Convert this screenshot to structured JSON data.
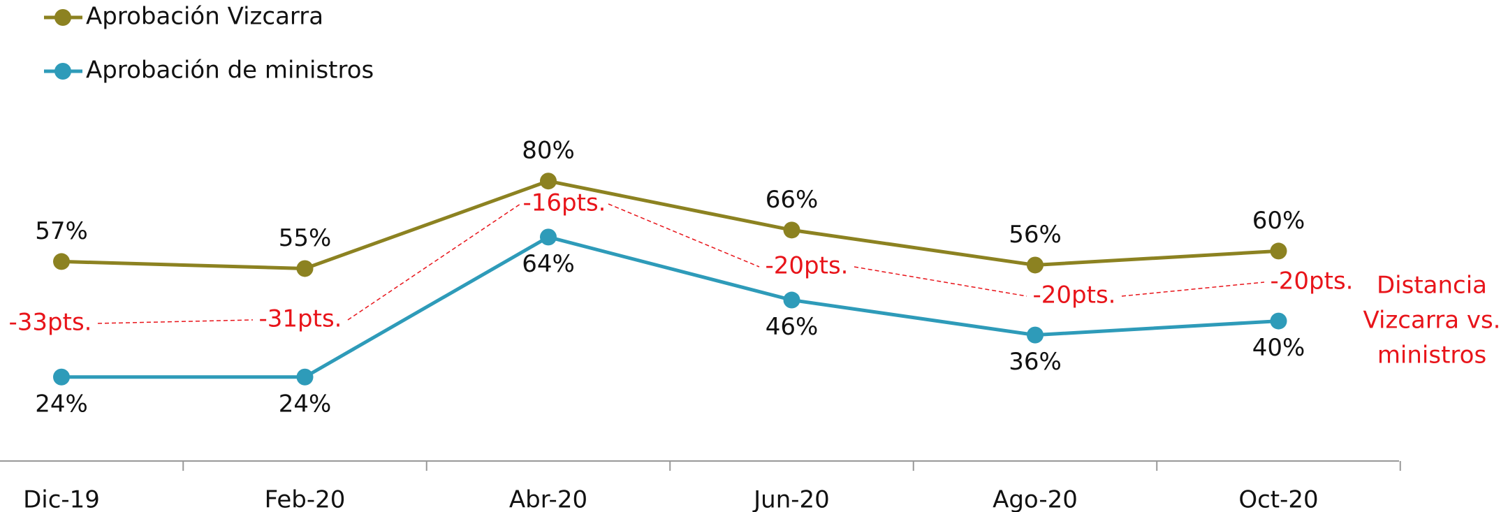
{
  "chart_data": {
    "type": "line",
    "categories": [
      "Dic-19",
      "Feb-20",
      "Abr-20",
      "Jun-20",
      "Ago-20",
      "Oct-20"
    ],
    "series": [
      {
        "name": "Aprobación Vizcarra",
        "color": "#8c8221",
        "values": [
          57,
          55,
          80,
          66,
          56,
          60
        ],
        "value_labels": [
          "57%",
          "55%",
          "80%",
          "66%",
          "56%",
          "60%"
        ]
      },
      {
        "name": "Aprobación de ministros",
        "color": "#2e9bb9",
        "values": [
          24,
          24,
          64,
          46,
          36,
          40
        ],
        "value_labels": [
          "24%",
          "24%",
          "64%",
          "46%",
          "36%",
          "40%"
        ]
      }
    ],
    "ylim": [
      0,
      100
    ],
    "gap_labels": [
      "-33pts.",
      "-31pts.",
      "-16pts.",
      "-20pts.",
      "-20pts.",
      "-20pts."
    ],
    "gap_color": "#e8141a",
    "annotation": [
      "Distancia",
      "Vizcarra vs.",
      "ministros"
    ],
    "legend": "top-left"
  }
}
